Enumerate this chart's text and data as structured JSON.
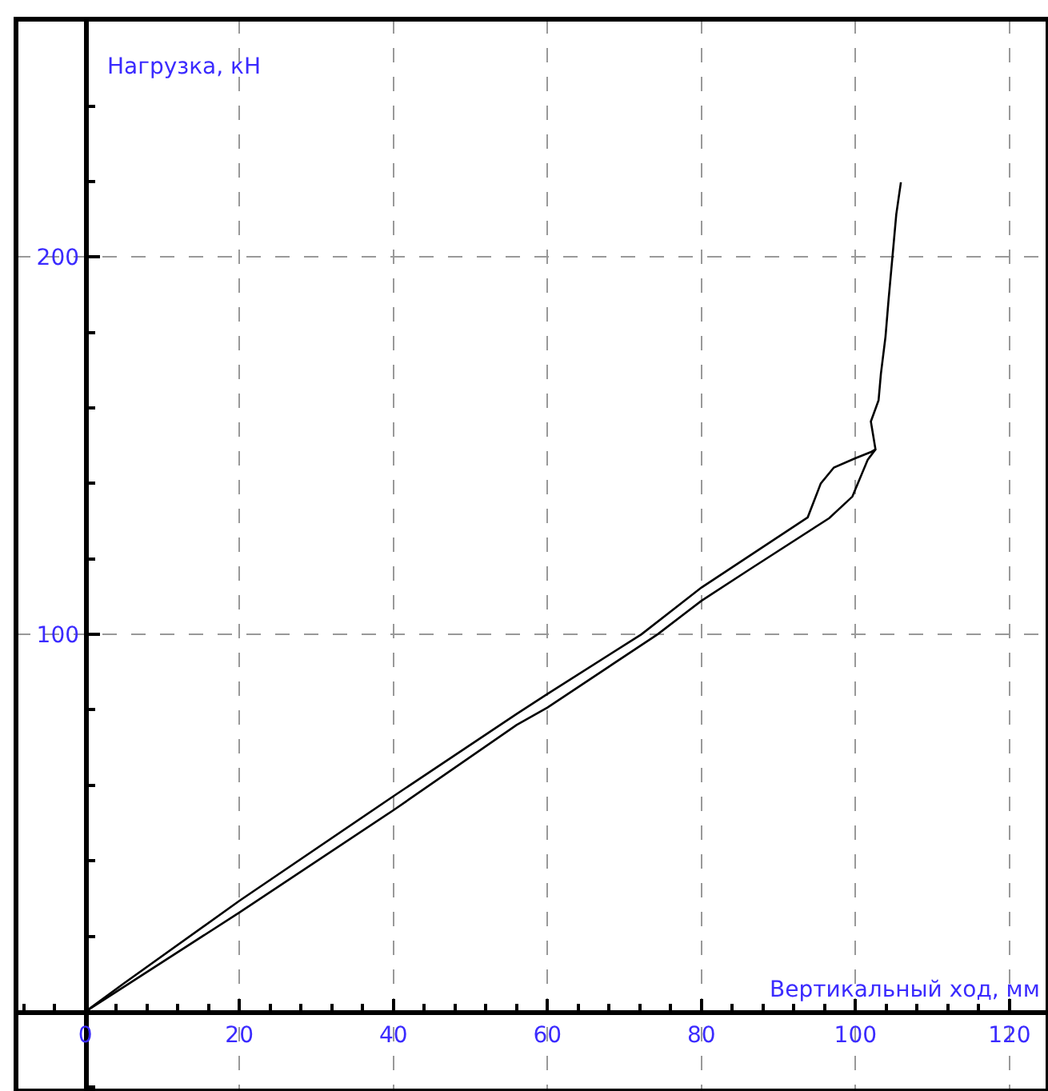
{
  "chart_data": {
    "type": "line",
    "xlabel": "Вертикальный ход, мм",
    "ylabel": "Нагрузка, кН",
    "xlim": [
      -9,
      125
    ],
    "ylim": [
      -21,
      263
    ],
    "xticks": [
      {
        "value": -8,
        "label": null
      },
      {
        "value": -4,
        "label": null
      },
      0,
      {
        "value": 4,
        "label": null
      },
      {
        "value": 8,
        "label": null
      },
      {
        "value": 12,
        "label": null
      },
      {
        "value": 16,
        "label": null
      },
      20,
      {
        "value": 24,
        "label": null
      },
      {
        "value": 28,
        "label": null
      },
      {
        "value": 32,
        "label": null
      },
      {
        "value": 36,
        "label": null
      },
      40,
      {
        "value": 44,
        "label": null
      },
      {
        "value": 48,
        "label": null
      },
      {
        "value": 52,
        "label": null
      },
      {
        "value": 56,
        "label": null
      },
      60,
      {
        "value": 64,
        "label": null
      },
      {
        "value": 68,
        "label": null
      },
      {
        "value": 72,
        "label": null
      },
      {
        "value": 76,
        "label": null
      },
      80,
      {
        "value": 84,
        "label": null
      },
      {
        "value": 88,
        "label": null
      },
      {
        "value": 92,
        "label": null
      },
      {
        "value": 96,
        "label": null
      },
      100,
      {
        "value": 104,
        "label": null
      },
      {
        "value": 108,
        "label": null
      },
      {
        "value": 112,
        "label": null
      },
      {
        "value": 116,
        "label": null
      },
      120
    ],
    "yticks": [
      {
        "value": -20,
        "label": null
      },
      {
        "value": 0,
        "label": null
      },
      {
        "value": 20,
        "label": null
      },
      {
        "value": 40,
        "label": null
      },
      {
        "value": 60,
        "label": null
      },
      {
        "value": 80,
        "label": null
      },
      100,
      {
        "value": 120,
        "label": null
      },
      {
        "value": 140,
        "label": null
      },
      {
        "value": 160,
        "label": null
      },
      {
        "value": 180,
        "label": null
      },
      200,
      {
        "value": 220,
        "label": null
      },
      {
        "value": 240,
        "label": null
      }
    ],
    "grid": true,
    "marker": "none",
    "line_style": "solid",
    "series": [
      {
        "color": "#000000",
        "x": [
          0,
          5,
          20,
          40,
          56,
          60,
          72.2,
          80,
          93.8,
          95.5,
          97.2,
          99.9,
          102.1,
          102.6,
          102,
          103,
          103.3,
          103.9,
          104.3,
          104.8,
          105.3,
          105.9
        ],
        "values": [
          0,
          7.5,
          29.4,
          57.1,
          78.9,
          84.2,
          100,
          112.4,
          131,
          140,
          144.2,
          146.6,
          148.4,
          149,
          156.4,
          162,
          169,
          178.9,
          188.7,
          200,
          211.3,
          219.8
        ]
      },
      {
        "color": "#000000",
        "x": [
          0,
          20,
          40,
          56,
          60,
          74.3,
          80,
          86.4,
          96.6,
          99.6,
          101.6,
          102.6
        ],
        "values": [
          0,
          26.3,
          53.4,
          76,
          80.6,
          100,
          108.9,
          117.4,
          130.8,
          136.5,
          146.3,
          149
        ]
      }
    ]
  }
}
